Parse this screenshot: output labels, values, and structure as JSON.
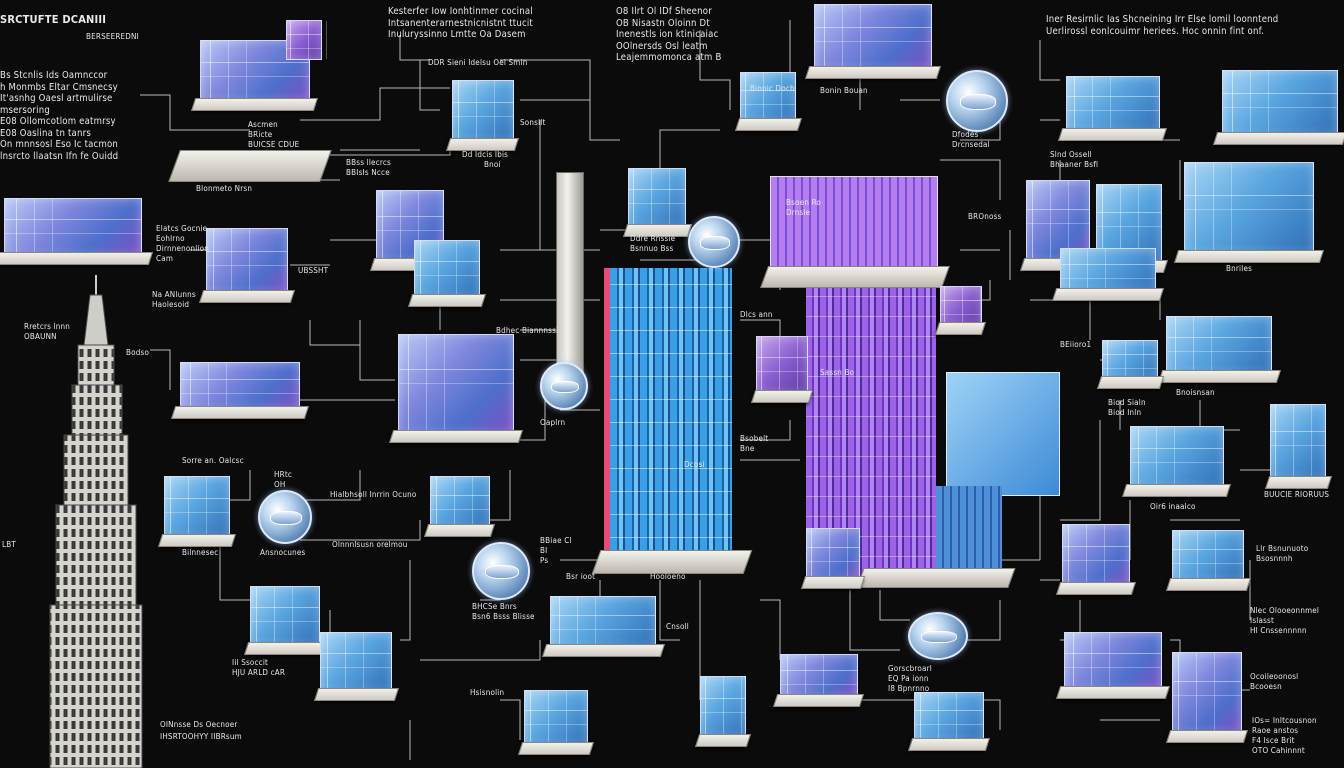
{
  "diagram": {
    "title": "SRCTUFTE DCANIII",
    "subtitle": "BERSEEREDNI",
    "colors": {
      "background": "#0b0b0c",
      "connector": "#d8d8dc",
      "glass_blue": "#5aa6e0",
      "glass_violet": "#8a5ed0",
      "accent_pink": "#e84a7a",
      "slab": "#ebe8e1"
    },
    "labels": {
      "title_sub": "BERSEEREDNI",
      "left_block": "Bs Stcnlis Ids Oamnccor\nh Monmbs Eltar Cmsnecsy\nIt'asnhg Oaesl artmulirse\nmsersoring\nE08 Ollomcotlom eatmrsy\nE08 Oaslina tn tanrs\nOn mnnsosl Eso Ic tacmon\nlnsrcto llaatsn Ifn fe Ouidd",
      "top_head_1": "Kesterfer Iow Ionhtinmer cocinal\nIntsanenterarnestnicnistnt ttucit\nInuluryssinno Lmtte Oa Dasem",
      "top_head_2": "O8 Ilrt Ol IDf Sheenor\nOB Nisastn Oloinn Dt\nInenestls ion ktinicaiac\nOOlnersds Osl leatm\nLeajemmomonca atm B",
      "top_right_head": "Iner Resirnlic Ias Shcneining Irr Else lomil loonntend\nUerlirossl eonlcouimr heriees. Hoc onnin fint onf.",
      "l_mid_a": "Ascmen\nBRicte\nBUICSE CDUE",
      "l_mid_b": "Blonmeto Nrsn",
      "l_mid_c": "Elatcs Gocnie\nEohlrno\nDirnnenonlion\nCam",
      "l_mid_d": "Na ANlunns\nHaolesoid",
      "tower_cap_a": "Rretcrs lnnn\nOBAUNN",
      "tower_cap_b": "Bodso",
      "tower_cap_c": "UBSSHT",
      "l_lower_a": "Sorre an. Oalcsc",
      "l_lower_b": "HRtc\nOH",
      "l_lower_c": "Ansnocunes",
      "l_lower_d": "Olnnnlsusn orelmou",
      "l_lower_e": "Iil Ssoccit\nHJU ARLD cAR",
      "l_lower_f": "Bilnnesec",
      "l_lower_g": "Hialbhsoll Inrrin Ocuno",
      "l_bottom_a": "OINnsse Ds Oecnoer",
      "l_bottom_b": "IHSRTOOHYY IIBRsum",
      "c_top_a": "DDR Sieni Idelsu Oel Smin",
      "c_top_b": "Sonsllt",
      "c_top_c": "Dd Idcis Ibis",
      "c_top_d": "Bnoi",
      "c_top_e": "BBss llecrcs\nBBIsIs Ncce",
      "c_mid_a": "Ddre Rnssie\nBsnnuo Bss",
      "c_mid_b": "Bionic Docb",
      "c_mid_c": "Dlcs ann",
      "c_mid_d": "Bsoen Ro\nDrnsle",
      "c_mid_e": "Bsobelt\nBne",
      "c_mid_f": "Dcosi",
      "c_mid_g": "BBiae Cl\nBI\nPs",
      "c_mid_h": "Bdhec Biannnssi",
      "c_mid_i": "Oaplrn",
      "c_low_a": "BHCSe Bnrs\nBsn6 Bsss Blisse",
      "c_low_b": "Cnsoll",
      "c_low_c": "Bsr ioot",
      "c_low_d": "Gorscbroarl\nEQ Pa ionn\nI8 Bpnrnno",
      "c_low_e": "Hsisnolin",
      "c_low_f": "Sassn Bo",
      "c_low_g": "Hooloeno",
      "r_top_a": "Bonin Bouan",
      "r_top_b": "Slnd Ossell\nBhaaner Bsfl",
      "r_top_c": "Dfodes\nDrcnsedal",
      "r_mid_a": "BROnoss",
      "r_mid_b": "Bnriles",
      "r_mid_c": "Bnoisnsan",
      "r_mid_d": "Biod Sialn\nBiod Inln",
      "r_mid_e": "BUUCIE RIORUUS",
      "r_mid_f": "Oir6 inaalco",
      "r_mid_g": "BEiioro1",
      "r_low_a": "Llr Bsnunuoto\nBsosnnnh",
      "r_low_b": "Nlec Olooeonnmel\nIslasst\nHI Cnssennnnn",
      "r_low_c": "Ocoileoonosl\nBcooesn",
      "r_low_d": "IOs= Inltcousnon\nRaoe anstos\nF4 Isce Brit\nOTO Cahinnnt",
      "edge_left": "LBT"
    }
  }
}
